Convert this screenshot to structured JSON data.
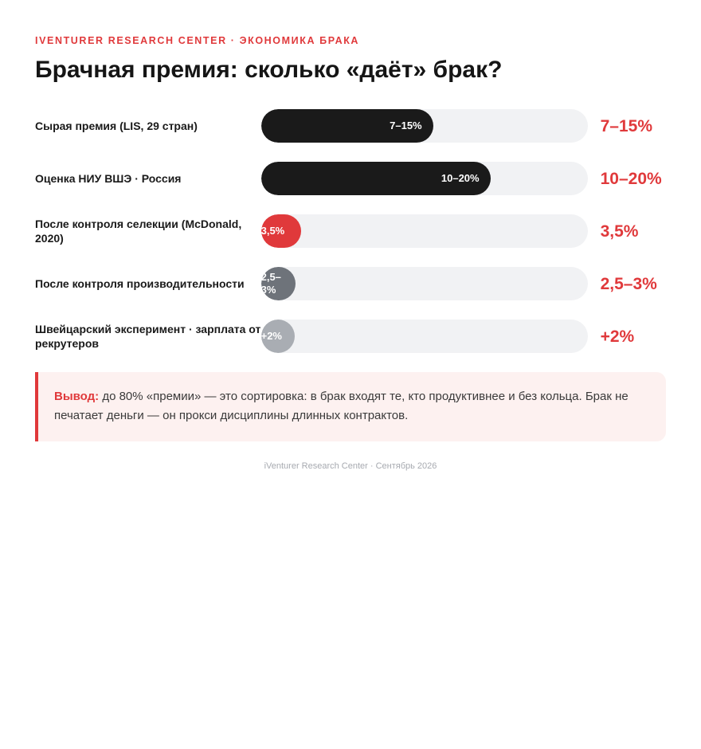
{
  "header": {
    "kicker": "iVenturer Research Center · Экономика брака",
    "title": "Брачная премия: сколько «даёт» брак?"
  },
  "chart_data": {
    "type": "bar",
    "orientation": "horizontal",
    "title": "Брачная премия: сколько «даёт» брак?",
    "categories": [
      "Сырая премия (LIS, 29 стран)",
      "Оценка НИУ ВШЭ · Россия",
      "После контроля селекции (McDonald, 2020)",
      "После контроля производительности",
      "Швейцарский эксперимент · зарплата от рекрутеров"
    ],
    "series": [
      {
        "values": [
          15,
          20,
          3.5,
          3,
          2
        ],
        "labels": [
          "7–15%",
          "10–20%",
          "3,5%",
          "2,5–3%",
          "+2%"
        ],
        "colors": [
          "#1a1a1a",
          "#1a1a1a",
          "#e0393b",
          "#6e737a",
          "#a9adb3"
        ]
      }
    ],
    "value_labels": [
      "7–15%",
      "10–20%",
      "3,5%",
      "2,5–3%",
      "+2%"
    ],
    "xlim": [
      0,
      28.5
    ],
    "grid": false,
    "legend": "none"
  },
  "note": {
    "lead": "Вывод:",
    "text": " до 80% «премии» — это сортировка: в брак входят те, кто продуктивнее и без кольца. Брак не печатает деньги — он прокси дисциплины длинных контрактов."
  },
  "footer": {
    "text": "iVenturer Research Center · Сентябрь 2026"
  }
}
